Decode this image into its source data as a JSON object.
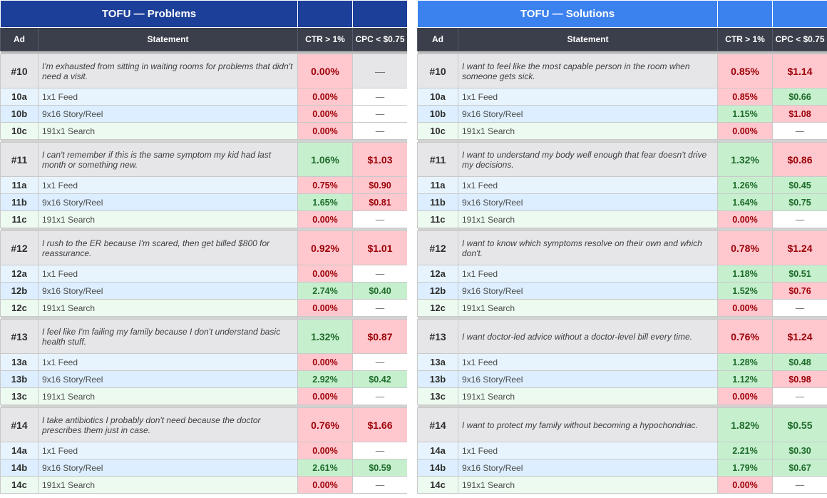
{
  "tables": [
    {
      "title": "TOFU — Problems",
      "headers": {
        "ad": "Ad",
        "statement": "Statement",
        "ctr": "CTR > 1%",
        "cpc": "CPC < $0.75"
      },
      "groups": [
        {
          "ad": "#10",
          "statement": "I'm exhausted from sitting in waiting rooms for problems that didn't need a visit.",
          "ctr": "0.00%",
          "ctr_status": "bad",
          "cpc": "—",
          "cpc_status": "na",
          "variants": [
            {
              "ad": "10a",
              "statement": "1x1 Feed",
              "ctr": "0.00%",
              "ctr_status": "bad",
              "cpc": "—",
              "cpc_status": "na"
            },
            {
              "ad": "10b",
              "statement": "9x16 Story/Reel",
              "ctr": "0.00%",
              "ctr_status": "bad",
              "cpc": "—",
              "cpc_status": "na"
            },
            {
              "ad": "10c",
              "statement": "191x1 Search",
              "ctr": "0.00%",
              "ctr_status": "bad",
              "cpc": "—",
              "cpc_status": "na"
            }
          ]
        },
        {
          "ad": "#11",
          "statement": "I can't remember if this is the same symptom my kid had last month or something new.",
          "ctr": "1.06%",
          "ctr_status": "good",
          "cpc": "$1.03",
          "cpc_status": "bad",
          "variants": [
            {
              "ad": "11a",
              "statement": "1x1 Feed",
              "ctr": "0.75%",
              "ctr_status": "bad",
              "cpc": "$0.90",
              "cpc_status": "bad"
            },
            {
              "ad": "11b",
              "statement": "9x16 Story/Reel",
              "ctr": "1.65%",
              "ctr_status": "good",
              "cpc": "$0.81",
              "cpc_status": "bad"
            },
            {
              "ad": "11c",
              "statement": "191x1 Search",
              "ctr": "0.00%",
              "ctr_status": "bad",
              "cpc": "—",
              "cpc_status": "na"
            }
          ]
        },
        {
          "ad": "#12",
          "statement": "I rush to the ER because I'm scared, then get billed $800 for reassurance.",
          "ctr": "0.92%",
          "ctr_status": "bad",
          "cpc": "$1.01",
          "cpc_status": "bad",
          "variants": [
            {
              "ad": "12a",
              "statement": "1x1 Feed",
              "ctr": "0.00%",
              "ctr_status": "bad",
              "cpc": "—",
              "cpc_status": "na"
            },
            {
              "ad": "12b",
              "statement": "9x16 Story/Reel",
              "ctr": "2.74%",
              "ctr_status": "good",
              "cpc": "$0.40",
              "cpc_status": "good"
            },
            {
              "ad": "12c",
              "statement": "191x1 Search",
              "ctr": "0.00%",
              "ctr_status": "bad",
              "cpc": "—",
              "cpc_status": "na"
            }
          ]
        },
        {
          "ad": "#13",
          "statement": "I feel like I'm failing my family because I don't understand basic health stuff.",
          "ctr": "1.32%",
          "ctr_status": "good",
          "cpc": "$0.87",
          "cpc_status": "bad",
          "variants": [
            {
              "ad": "13a",
              "statement": "1x1 Feed",
              "ctr": "0.00%",
              "ctr_status": "bad",
              "cpc": "—",
              "cpc_status": "na"
            },
            {
              "ad": "13b",
              "statement": "9x16 Story/Reel",
              "ctr": "2.92%",
              "ctr_status": "good",
              "cpc": "$0.42",
              "cpc_status": "good"
            },
            {
              "ad": "13c",
              "statement": "191x1 Search",
              "ctr": "0.00%",
              "ctr_status": "bad",
              "cpc": "—",
              "cpc_status": "na"
            }
          ]
        },
        {
          "ad": "#14",
          "statement": "I take antibiotics I probably don't need because the doctor prescribes them just in case.",
          "ctr": "0.76%",
          "ctr_status": "bad",
          "cpc": "$1.66",
          "cpc_status": "bad",
          "variants": [
            {
              "ad": "14a",
              "statement": "1x1 Feed",
              "ctr": "0.00%",
              "ctr_status": "bad",
              "cpc": "—",
              "cpc_status": "na"
            },
            {
              "ad": "14b",
              "statement": "9x16 Story/Reel",
              "ctr": "2.61%",
              "ctr_status": "good",
              "cpc": "$0.59",
              "cpc_status": "good"
            },
            {
              "ad": "14c",
              "statement": "191x1 Search",
              "ctr": "0.00%",
              "ctr_status": "bad",
              "cpc": "—",
              "cpc_status": "na"
            }
          ]
        }
      ]
    },
    {
      "title": "TOFU — Solutions",
      "headers": {
        "ad": "Ad",
        "statement": "Statement",
        "ctr": "CTR > 1%",
        "cpc": "CPC < $0.75"
      },
      "groups": [
        {
          "ad": "#10",
          "statement": "I want to feel like the most capable person in the room when someone gets sick.",
          "ctr": "0.85%",
          "ctr_status": "bad",
          "cpc": "$1.14",
          "cpc_status": "bad",
          "variants": [
            {
              "ad": "10a",
              "statement": "1x1 Feed",
              "ctr": "0.85%",
              "ctr_status": "bad",
              "cpc": "$0.66",
              "cpc_status": "good"
            },
            {
              "ad": "10b",
              "statement": "9x16 Story/Reel",
              "ctr": "1.15%",
              "ctr_status": "good",
              "cpc": "$1.08",
              "cpc_status": "bad"
            },
            {
              "ad": "10c",
              "statement": "191x1 Search",
              "ctr": "0.00%",
              "ctr_status": "bad",
              "cpc": "—",
              "cpc_status": "na"
            }
          ]
        },
        {
          "ad": "#11",
          "statement": "I want to understand my body well enough that fear doesn't drive my decisions.",
          "ctr": "1.32%",
          "ctr_status": "good",
          "cpc": "$0.86",
          "cpc_status": "bad",
          "variants": [
            {
              "ad": "11a",
              "statement": "1x1 Feed",
              "ctr": "1.26%",
              "ctr_status": "good",
              "cpc": "$0.45",
              "cpc_status": "good"
            },
            {
              "ad": "11b",
              "statement": "9x16 Story/Reel",
              "ctr": "1.64%",
              "ctr_status": "good",
              "cpc": "$0.75",
              "cpc_status": "good"
            },
            {
              "ad": "11c",
              "statement": "191x1 Search",
              "ctr": "0.00%",
              "ctr_status": "bad",
              "cpc": "—",
              "cpc_status": "na"
            }
          ]
        },
        {
          "ad": "#12",
          "statement": "I want to know which symptoms resolve on their own and which don't.",
          "ctr": "0.78%",
          "ctr_status": "bad",
          "cpc": "$1.24",
          "cpc_status": "bad",
          "variants": [
            {
              "ad": "12a",
              "statement": "1x1 Feed",
              "ctr": "1.18%",
              "ctr_status": "good",
              "cpc": "$0.51",
              "cpc_status": "good"
            },
            {
              "ad": "12b",
              "statement": "9x16 Story/Reel",
              "ctr": "1.52%",
              "ctr_status": "good",
              "cpc": "$0.76",
              "cpc_status": "bad"
            },
            {
              "ad": "12c",
              "statement": "191x1 Search",
              "ctr": "0.00%",
              "ctr_status": "bad",
              "cpc": "—",
              "cpc_status": "na"
            }
          ]
        },
        {
          "ad": "#13",
          "statement": "I want doctor-led advice without a doctor-level bill every time.",
          "ctr": "0.76%",
          "ctr_status": "bad",
          "cpc": "$1.24",
          "cpc_status": "bad",
          "variants": [
            {
              "ad": "13a",
              "statement": "1x1 Feed",
              "ctr": "1.28%",
              "ctr_status": "good",
              "cpc": "$0.48",
              "cpc_status": "good"
            },
            {
              "ad": "13b",
              "statement": "9x16 Story/Reel",
              "ctr": "1.12%",
              "ctr_status": "good",
              "cpc": "$0.98",
              "cpc_status": "bad"
            },
            {
              "ad": "13c",
              "statement": "191x1 Search",
              "ctr": "0.00%",
              "ctr_status": "bad",
              "cpc": "—",
              "cpc_status": "na"
            }
          ]
        },
        {
          "ad": "#14",
          "statement": "I want to protect my family without becoming a hypochondriac.",
          "ctr": "1.82%",
          "ctr_status": "good",
          "cpc": "$0.55",
          "cpc_status": "good",
          "variants": [
            {
              "ad": "14a",
              "statement": "1x1 Feed",
              "ctr": "2.21%",
              "ctr_status": "good",
              "cpc": "$0.30",
              "cpc_status": "good"
            },
            {
              "ad": "14b",
              "statement": "9x16 Story/Reel",
              "ctr": "1.79%",
              "ctr_status": "good",
              "cpc": "$0.67",
              "cpc_status": "good"
            },
            {
              "ad": "14c",
              "statement": "191x1 Search",
              "ctr": "0.00%",
              "ctr_status": "bad",
              "cpc": "—",
              "cpc_status": "na"
            }
          ]
        }
      ]
    }
  ]
}
